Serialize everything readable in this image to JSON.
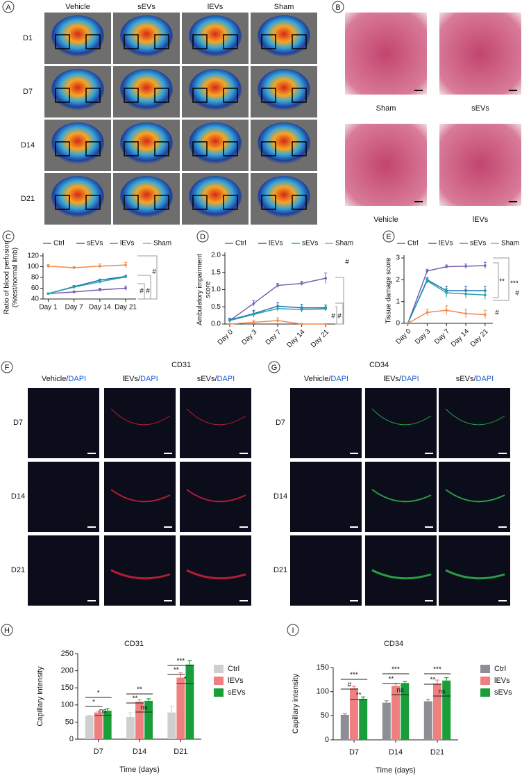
{
  "panels": {
    "labels": [
      "A",
      "B",
      "C",
      "D",
      "E",
      "F",
      "G",
      "H",
      "I"
    ]
  },
  "figure_a": {
    "columns": [
      "Vehicle",
      "sEVs",
      "lEVs",
      "Sham"
    ],
    "rows": [
      "D1",
      "D7",
      "D14",
      "D21"
    ]
  },
  "figure_b": {
    "labels": [
      "Sham",
      "sEVs",
      "Vehicle",
      "lEVs"
    ]
  },
  "figure_f": {
    "title": "CD31",
    "columns": [
      "Vehicle/",
      "lEVs/",
      "sEVs/"
    ],
    "stain": "DAPI",
    "rows": [
      "D7",
      "D14",
      "D21"
    ]
  },
  "figure_g": {
    "title": "CD34",
    "columns": [
      "Vehicle/",
      "lEVs/",
      "sEVs/"
    ],
    "stain": "DAPI",
    "rows": [
      "D7",
      "D14",
      "D21"
    ]
  },
  "chart_data": [
    {
      "type": "line",
      "ylabel": [
        "Ratio of blood perfusion",
        "(%test/normal limb)"
      ],
      "categories": [
        "Day 1",
        "Day 7",
        "Day 14",
        "Day 21"
      ],
      "ylim": [
        40,
        120
      ],
      "yticks": [
        40,
        60,
        80,
        100,
        120
      ],
      "series": [
        {
          "name": "Ctrl",
          "color": "#7b5bb5",
          "values": [
            50,
            53,
            57,
            60
          ],
          "errors": [
            1,
            2,
            3,
            4
          ]
        },
        {
          "name": "sEVs",
          "color": "#1f6fb5",
          "values": [
            50,
            63,
            75,
            82
          ],
          "errors": [
            1,
            2,
            2,
            2
          ]
        },
        {
          "name": "lEVs",
          "color": "#2aa3a8",
          "values": [
            50,
            62,
            72,
            81
          ],
          "errors": [
            1,
            2,
            3,
            2
          ]
        },
        {
          "name": "Sham",
          "color": "#f08a4b",
          "values": [
            101,
            98,
            101,
            103
          ],
          "errors": [
            3,
            2,
            4,
            5
          ]
        }
      ],
      "annotations": [
        "#",
        "#",
        "#"
      ]
    },
    {
      "type": "line",
      "ylabel": [
        "Ambulatory impairment",
        "score"
      ],
      "categories": [
        "Day 0",
        "Day 3",
        "Day 7",
        "Day 14",
        "Day 21"
      ],
      "ylim": [
        0,
        2
      ],
      "yticks": [
        {
          "value": 0,
          "label": "0.0"
        },
        0.5,
        {
          "value": 1,
          "label": "1.0"
        },
        1.5,
        {
          "value": 2,
          "label": "2.0"
        }
      ],
      "series": [
        {
          "name": "Ctrl",
          "color": "#7b5bb5",
          "values": [
            0.1,
            0.6,
            1.12,
            1.18,
            1.33
          ],
          "errors": [
            0.05,
            0.08,
            0.06,
            0.06,
            0.15
          ]
        },
        {
          "name": "lEVs",
          "color": "#1f6fb5",
          "values": [
            0.12,
            0.3,
            0.52,
            0.47,
            0.47
          ],
          "errors": [
            0.05,
            0.1,
            0.1,
            0.1,
            0.08
          ]
        },
        {
          "name": "sEVs",
          "color": "#2aa3a8",
          "values": [
            0.1,
            0.28,
            0.45,
            0.42,
            0.44
          ],
          "errors": [
            0.05,
            0.08,
            0.08,
            0.08,
            0.06
          ]
        },
        {
          "name": "Sham",
          "color": "#f08a4b",
          "values": [
            0,
            0.05,
            0.1,
            0,
            0
          ],
          "errors": [
            0,
            0.05,
            0.08,
            0,
            0
          ]
        }
      ],
      "annotations": [
        "#",
        "#",
        "#"
      ]
    },
    {
      "type": "line",
      "ylabel": [
        "Tissue damage score"
      ],
      "categories": [
        "Day 0",
        "Day 3",
        "Day 7",
        "Day 14",
        "Day 21"
      ],
      "ylim": [
        0,
        3
      ],
      "yticks": [
        0,
        1,
        2,
        3
      ],
      "series": [
        {
          "name": "Ctrl",
          "color": "#7b5bb5",
          "values": [
            0,
            2.4,
            2.6,
            2.62,
            2.65
          ],
          "errors": [
            0,
            0.08,
            0.08,
            0.1,
            0.15
          ]
        },
        {
          "name": "lEVs",
          "color": "#1f6fb5",
          "values": [
            0,
            2.0,
            1.5,
            1.5,
            1.5
          ],
          "errors": [
            0,
            0.1,
            0.2,
            0.2,
            0.2
          ]
        },
        {
          "name": "sEVs",
          "color": "#2aa3a8",
          "values": [
            0,
            1.95,
            1.4,
            1.35,
            1.3
          ],
          "errors": [
            0,
            0.1,
            0.2,
            0.2,
            0.2
          ]
        },
        {
          "name": "Sham",
          "color": "#f08a4b",
          "values": [
            0,
            0.5,
            0.6,
            0.45,
            0.4
          ],
          "errors": [
            0,
            0.15,
            0.2,
            0.2,
            0.2
          ]
        }
      ],
      "annotations": [
        "**",
        "***",
        "#",
        "#"
      ]
    },
    {
      "type": "bar",
      "title": "CD31",
      "ylabel": "Capillary intensity",
      "xlabel": "Time (days)",
      "categories": [
        "D7",
        "D14",
        "D21"
      ],
      "ylim": [
        0,
        250
      ],
      "yticks": [
        0,
        50,
        100,
        150,
        200,
        250
      ],
      "series": [
        {
          "name": "Ctrl",
          "color": "#cfcfcf",
          "values": [
            68,
            65,
            78
          ],
          "errors": [
            2,
            12,
            18
          ]
        },
        {
          "name": "lEVs",
          "color": "#f08080",
          "values": [
            78,
            110,
            180
          ],
          "errors": [
            4,
            6,
            14
          ]
        },
        {
          "name": "sEVs",
          "color": "#1a9e3a",
          "values": [
            83,
            112,
            218
          ],
          "errors": [
            6,
            6,
            12
          ]
        }
      ],
      "annotations": [
        "*",
        "*",
        "ns",
        "**",
        "**",
        "ns",
        "***",
        "**",
        "*"
      ]
    },
    {
      "type": "bar",
      "title": "CD34",
      "ylabel": "Capillary intensity",
      "xlabel": "Time (days)",
      "categories": [
        "D7",
        "D14",
        "D21"
      ],
      "ylim": [
        0,
        150
      ],
      "yticks": [
        0,
        50,
        100,
        150
      ],
      "series": [
        {
          "name": "Ctrl",
          "color": "#8e8e96",
          "values": [
            52,
            77,
            80
          ],
          "errors": [
            2,
            4,
            4
          ]
        },
        {
          "name": "lEVs",
          "color": "#f08080",
          "values": [
            107,
            112,
            117
          ],
          "errors": [
            4,
            5,
            7
          ]
        },
        {
          "name": "sEVs",
          "color": "#1a9e3a",
          "values": [
            85,
            118,
            123
          ],
          "errors": [
            4,
            3,
            6
          ]
        }
      ],
      "annotations": [
        "***",
        "#",
        "**",
        "***",
        "**",
        "ns",
        "***",
        "**",
        "ns"
      ]
    }
  ]
}
